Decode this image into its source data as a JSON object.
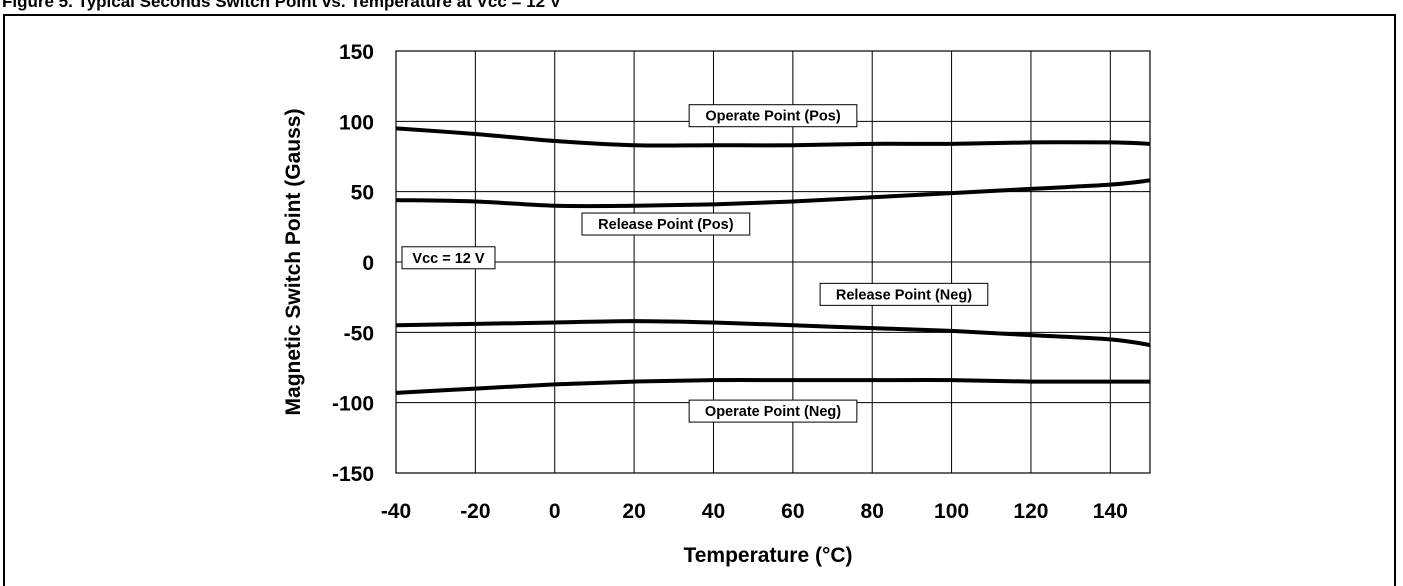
{
  "caption": "Figure 5. Typical Seconds Switch Point vs. Temperature at Vcc = 12 V",
  "chart_data": {
    "type": "line",
    "title": "",
    "xlabel": "Temperature (°C)",
    "ylabel": "Magnetic Switch Point (Gauss)",
    "xlim": [
      -40,
      150
    ],
    "ylim": [
      -150,
      150
    ],
    "xticks": [
      -40,
      -20,
      0,
      20,
      40,
      60,
      80,
      100,
      120,
      140
    ],
    "yticks": [
      150,
      100,
      50,
      0,
      -50,
      -100,
      -150
    ],
    "grid": true,
    "legend": "none",
    "series": [
      {
        "name": "Operate Point (Pos)",
        "label_at": [
          55,
          104
        ],
        "x": [
          -40,
          -20,
          0,
          20,
          40,
          60,
          80,
          100,
          120,
          140,
          150
        ],
        "y": [
          95,
          91,
          86,
          83,
          83,
          83,
          84,
          84,
          85,
          85,
          84
        ]
      },
      {
        "name": "Release Point (Pos)",
        "label_at": [
          28,
          27
        ],
        "x": [
          -40,
          -20,
          0,
          20,
          40,
          60,
          80,
          100,
          120,
          140,
          150
        ],
        "y": [
          44,
          43,
          40,
          40,
          41,
          43,
          46,
          49,
          52,
          55,
          58
        ]
      },
      {
        "name": "Release Point (Neg)",
        "label_at": [
          88,
          -23
        ],
        "x": [
          -40,
          -20,
          0,
          20,
          40,
          60,
          80,
          100,
          120,
          140,
          150
        ],
        "y": [
          -45,
          -44,
          -43,
          -42,
          -43,
          -45,
          -47,
          -49,
          -52,
          -55,
          -59
        ]
      },
      {
        "name": "Operate Point (Neg)",
        "label_at": [
          55,
          -106
        ],
        "x": [
          -40,
          -20,
          0,
          20,
          40,
          60,
          80,
          100,
          120,
          140,
          150
        ],
        "y": [
          -93,
          -90,
          -87,
          -85,
          -84,
          -84,
          -84,
          -84,
          -85,
          -85,
          -85
        ]
      }
    ],
    "annotations": [
      {
        "text": "Vcc = 12 V",
        "at": [
          -40,
          3
        ]
      }
    ]
  }
}
